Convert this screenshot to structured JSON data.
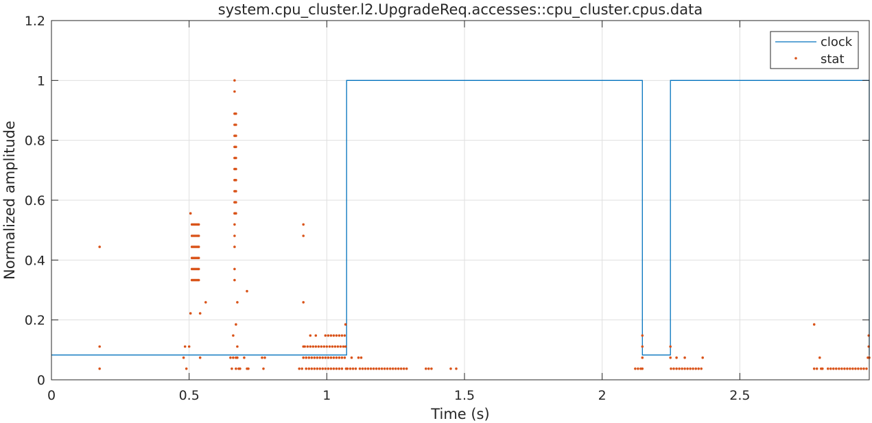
{
  "chart_data": {
    "type": "line",
    "title": "system.cpu_cluster.l2.UpgradeReq.accesses::cpu_cluster.cpus.data",
    "xlabel": "Time (s)",
    "ylabel": "Normalized amplitude",
    "xlim": [
      0,
      2.97
    ],
    "ylim": [
      0,
      1.2
    ],
    "x_ticks": [
      0,
      0.5,
      1,
      1.5,
      2,
      2.5
    ],
    "x_tick_labels": [
      "0",
      "0.5",
      "1",
      "1.5",
      "2",
      "2.5"
    ],
    "y_ticks": [
      0,
      0.2,
      0.4,
      0.6,
      0.8,
      1,
      1.2
    ],
    "y_tick_labels": [
      "0",
      "0.2",
      "0.4",
      "0.6",
      "0.8",
      "1",
      "1.2"
    ],
    "grid": true,
    "legend_position": "top-right",
    "colors": {
      "clock": "#0072BD",
      "stat": "#D95319",
      "grid": "#DFDFDF",
      "axes": "#262626"
    },
    "series": [
      {
        "name": "clock",
        "style": "step",
        "points": [
          [
            0,
            0.083
          ],
          [
            1.072,
            0.083
          ],
          [
            1.072,
            1.0
          ],
          [
            2.146,
            1.0
          ],
          [
            2.146,
            0.083
          ],
          [
            2.248,
            0.083
          ],
          [
            2.248,
            1.0
          ],
          [
            2.97,
            1.0
          ],
          [
            2.97,
            0.083
          ]
        ]
      },
      {
        "name": "stat",
        "style": "markers",
        "points": [
          [
            0.175,
            0.444
          ],
          [
            0.175,
            0.111
          ],
          [
            0.175,
            0.037
          ],
          [
            0.48,
            0.074
          ],
          [
            0.485,
            0.111
          ],
          [
            0.49,
            0.037
          ],
          [
            0.5,
            0.111
          ],
          [
            0.505,
            0.222
          ],
          [
            0.505,
            0.556
          ],
          [
            0.51,
            0.519
          ],
          [
            0.51,
            0.481
          ],
          [
            0.51,
            0.444
          ],
          [
            0.51,
            0.407
          ],
          [
            0.51,
            0.37
          ],
          [
            0.51,
            0.333
          ],
          [
            0.515,
            0.519
          ],
          [
            0.515,
            0.481
          ],
          [
            0.515,
            0.444
          ],
          [
            0.515,
            0.407
          ],
          [
            0.515,
            0.37
          ],
          [
            0.515,
            0.333
          ],
          [
            0.52,
            0.519
          ],
          [
            0.52,
            0.481
          ],
          [
            0.52,
            0.444
          ],
          [
            0.52,
            0.407
          ],
          [
            0.52,
            0.37
          ],
          [
            0.52,
            0.333
          ],
          [
            0.525,
            0.519
          ],
          [
            0.525,
            0.481
          ],
          [
            0.525,
            0.444
          ],
          [
            0.525,
            0.407
          ],
          [
            0.525,
            0.37
          ],
          [
            0.525,
            0.333
          ],
          [
            0.53,
            0.519
          ],
          [
            0.53,
            0.481
          ],
          [
            0.53,
            0.444
          ],
          [
            0.53,
            0.407
          ],
          [
            0.53,
            0.37
          ],
          [
            0.53,
            0.333
          ],
          [
            0.535,
            0.519
          ],
          [
            0.535,
            0.481
          ],
          [
            0.535,
            0.444
          ],
          [
            0.535,
            0.407
          ],
          [
            0.535,
            0.37
          ],
          [
            0.535,
            0.333
          ],
          [
            0.54,
            0.222
          ],
          [
            0.54,
            0.074
          ],
          [
            0.56,
            0.259
          ],
          [
            0.65,
            0.074
          ],
          [
            0.655,
            0.037
          ],
          [
            0.66,
            0.074
          ],
          [
            0.66,
            0.148
          ],
          [
            0.665,
            1.0
          ],
          [
            0.665,
            0.963
          ],
          [
            0.665,
            0.889
          ],
          [
            0.665,
            0.852
          ],
          [
            0.665,
            0.815
          ],
          [
            0.665,
            0.778
          ],
          [
            0.665,
            0.741
          ],
          [
            0.665,
            0.704
          ],
          [
            0.665,
            0.667
          ],
          [
            0.665,
            0.63
          ],
          [
            0.665,
            0.593
          ],
          [
            0.665,
            0.556
          ],
          [
            0.665,
            0.519
          ],
          [
            0.665,
            0.481
          ],
          [
            0.665,
            0.444
          ],
          [
            0.665,
            0.37
          ],
          [
            0.665,
            0.333
          ],
          [
            0.67,
            0.889
          ],
          [
            0.67,
            0.852
          ],
          [
            0.67,
            0.815
          ],
          [
            0.67,
            0.778
          ],
          [
            0.67,
            0.741
          ],
          [
            0.67,
            0.704
          ],
          [
            0.67,
            0.667
          ],
          [
            0.67,
            0.63
          ],
          [
            0.67,
            0.593
          ],
          [
            0.67,
            0.556
          ],
          [
            0.67,
            0.185
          ],
          [
            0.67,
            0.074
          ],
          [
            0.67,
            0.037
          ],
          [
            0.675,
            0.259
          ],
          [
            0.675,
            0.111
          ],
          [
            0.675,
            0.074
          ],
          [
            0.68,
            0.037
          ],
          [
            0.685,
            0.037
          ],
          [
            0.7,
            0.074
          ],
          [
            0.71,
            0.037
          ],
          [
            0.71,
            0.296
          ],
          [
            0.715,
            0.037
          ],
          [
            0.765,
            0.074
          ],
          [
            0.77,
            0.037
          ],
          [
            0.775,
            0.074
          ],
          [
            0.9,
            0.037
          ],
          [
            0.91,
            0.037
          ],
          [
            0.915,
            0.519
          ],
          [
            0.915,
            0.481
          ],
          [
            0.915,
            0.259
          ],
          [
            0.915,
            0.111
          ],
          [
            0.915,
            0.074
          ],
          [
            0.92,
            0.111
          ],
          [
            0.925,
            0.074
          ],
          [
            0.925,
            0.037
          ],
          [
            0.93,
            0.111
          ],
          [
            0.935,
            0.074
          ],
          [
            0.935,
            0.037
          ],
          [
            0.94,
            0.148
          ],
          [
            0.94,
            0.111
          ],
          [
            0.945,
            0.074
          ],
          [
            0.945,
            0.037
          ],
          [
            0.95,
            0.111
          ],
          [
            0.955,
            0.074
          ],
          [
            0.955,
            0.037
          ],
          [
            0.96,
            0.148
          ],
          [
            0.96,
            0.111
          ],
          [
            0.965,
            0.074
          ],
          [
            0.965,
            0.037
          ],
          [
            0.97,
            0.111
          ],
          [
            0.975,
            0.074
          ],
          [
            0.975,
            0.037
          ],
          [
            0.98,
            0.111
          ],
          [
            0.985,
            0.074
          ],
          [
            0.985,
            0.037
          ],
          [
            0.99,
            0.111
          ],
          [
            0.995,
            0.148
          ],
          [
            0.995,
            0.074
          ],
          [
            0.995,
            0.037
          ],
          [
            1.0,
            0.111
          ],
          [
            1.005,
            0.148
          ],
          [
            1.005,
            0.074
          ],
          [
            1.005,
            0.037
          ],
          [
            1.01,
            0.111
          ],
          [
            1.015,
            0.148
          ],
          [
            1.015,
            0.074
          ],
          [
            1.015,
            0.037
          ],
          [
            1.02,
            0.111
          ],
          [
            1.025,
            0.148
          ],
          [
            1.025,
            0.074
          ],
          [
            1.025,
            0.037
          ],
          [
            1.03,
            0.111
          ],
          [
            1.035,
            0.148
          ],
          [
            1.035,
            0.074
          ],
          [
            1.035,
            0.037
          ],
          [
            1.04,
            0.111
          ],
          [
            1.045,
            0.148
          ],
          [
            1.045,
            0.074
          ],
          [
            1.045,
            0.037
          ],
          [
            1.05,
            0.111
          ],
          [
            1.055,
            0.148
          ],
          [
            1.055,
            0.074
          ],
          [
            1.055,
            0.037
          ],
          [
            1.06,
            0.111
          ],
          [
            1.065,
            0.148
          ],
          [
            1.065,
            0.074
          ],
          [
            1.068,
            0.185
          ],
          [
            1.068,
            0.111
          ],
          [
            1.07,
            0.037
          ],
          [
            1.075,
            0.037
          ],
          [
            1.085,
            0.037
          ],
          [
            1.09,
            0.074
          ],
          [
            1.095,
            0.037
          ],
          [
            1.105,
            0.037
          ],
          [
            1.115,
            0.074
          ],
          [
            1.12,
            0.037
          ],
          [
            1.125,
            0.074
          ],
          [
            1.13,
            0.037
          ],
          [
            1.14,
            0.037
          ],
          [
            1.15,
            0.037
          ],
          [
            1.16,
            0.037
          ],
          [
            1.17,
            0.037
          ],
          [
            1.18,
            0.037
          ],
          [
            1.19,
            0.037
          ],
          [
            1.2,
            0.037
          ],
          [
            1.21,
            0.037
          ],
          [
            1.22,
            0.037
          ],
          [
            1.23,
            0.037
          ],
          [
            1.24,
            0.037
          ],
          [
            1.25,
            0.037
          ],
          [
            1.26,
            0.037
          ],
          [
            1.27,
            0.037
          ],
          [
            1.28,
            0.037
          ],
          [
            1.29,
            0.037
          ],
          [
            1.36,
            0.037
          ],
          [
            1.37,
            0.037
          ],
          [
            1.38,
            0.037
          ],
          [
            1.45,
            0.037
          ],
          [
            1.47,
            0.037
          ],
          [
            2.12,
            0.037
          ],
          [
            2.13,
            0.037
          ],
          [
            2.14,
            0.037
          ],
          [
            2.146,
            0.148
          ],
          [
            2.146,
            0.111
          ],
          [
            2.146,
            0.074
          ],
          [
            2.146,
            0.037
          ],
          [
            2.248,
            0.111
          ],
          [
            2.248,
            0.074
          ],
          [
            2.25,
            0.037
          ],
          [
            2.26,
            0.037
          ],
          [
            2.27,
            0.074
          ],
          [
            2.27,
            0.037
          ],
          [
            2.28,
            0.037
          ],
          [
            2.29,
            0.037
          ],
          [
            2.3,
            0.037
          ],
          [
            2.3,
            0.074
          ],
          [
            2.31,
            0.037
          ],
          [
            2.32,
            0.037
          ],
          [
            2.33,
            0.037
          ],
          [
            2.34,
            0.037
          ],
          [
            2.35,
            0.037
          ],
          [
            2.36,
            0.037
          ],
          [
            2.365,
            0.074
          ],
          [
            2.77,
            0.185
          ],
          [
            2.77,
            0.037
          ],
          [
            2.78,
            0.037
          ],
          [
            2.79,
            0.074
          ],
          [
            2.795,
            0.037
          ],
          [
            2.8,
            0.037
          ],
          [
            2.82,
            0.037
          ],
          [
            2.83,
            0.037
          ],
          [
            2.84,
            0.037
          ],
          [
            2.85,
            0.037
          ],
          [
            2.86,
            0.037
          ],
          [
            2.87,
            0.037
          ],
          [
            2.88,
            0.037
          ],
          [
            2.89,
            0.037
          ],
          [
            2.9,
            0.037
          ],
          [
            2.91,
            0.037
          ],
          [
            2.92,
            0.037
          ],
          [
            2.93,
            0.037
          ],
          [
            2.94,
            0.037
          ],
          [
            2.95,
            0.037
          ],
          [
            2.96,
            0.037
          ],
          [
            2.965,
            0.074
          ],
          [
            2.968,
            0.148
          ],
          [
            2.968,
            0.111
          ],
          [
            2.97,
            0.074
          ]
        ]
      }
    ]
  }
}
